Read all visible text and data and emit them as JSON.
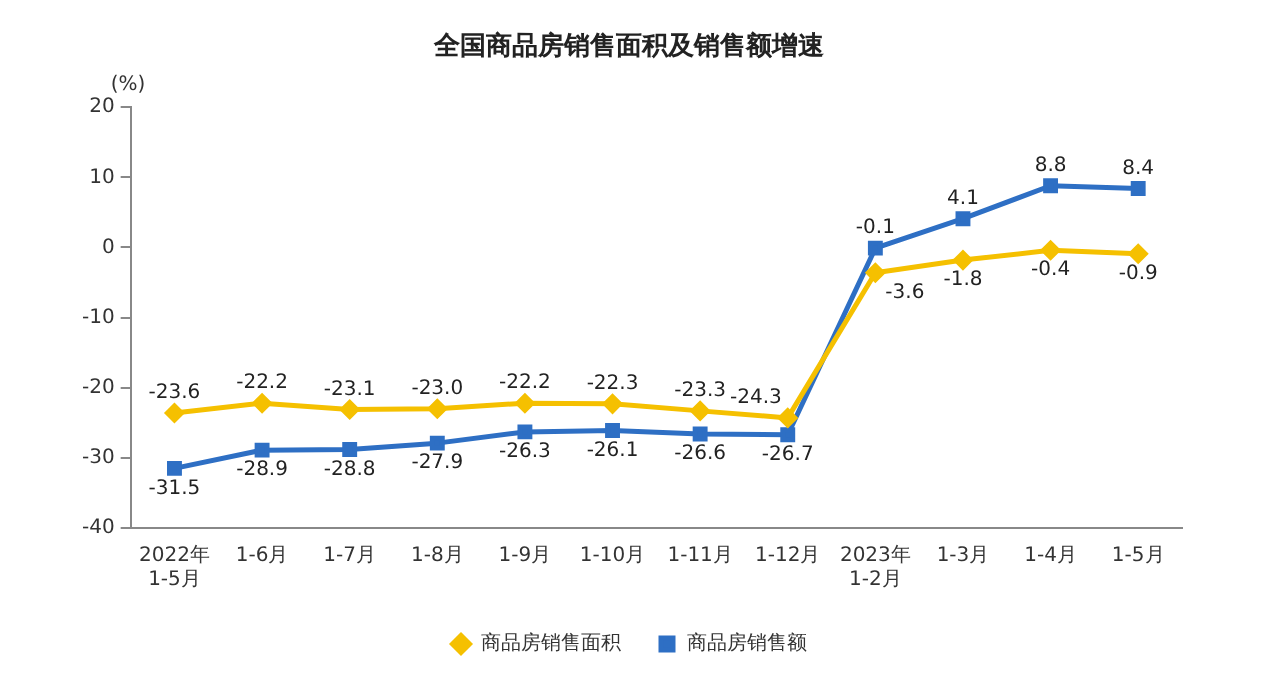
{
  "chart_data": {
    "type": "line",
    "title": "全国商品房销售面积及销售额增速",
    "ylabel": "(%)",
    "categories": [
      "2022年\n1-5月",
      "1-6月",
      "1-7月",
      "1-8月",
      "1-9月",
      "1-10月",
      "1-11月",
      "1-12月",
      "2023年\n1-2月",
      "1-3月",
      "1-4月",
      "1-5月"
    ],
    "series": [
      {
        "name": "商品房销售面积",
        "color": "#f5c000",
        "marker": "diamond",
        "values": [
          -23.6,
          -22.2,
          -23.1,
          -23.0,
          -22.2,
          -22.3,
          -23.3,
          -24.3,
          -3.6,
          -1.8,
          -0.4,
          -0.9
        ],
        "value_labels": [
          "-23.6",
          "-22.2",
          "-23.1",
          "-23.0",
          "-22.2",
          "-22.3",
          "-23.3",
          "-24.3",
          "-3.6",
          "-1.8",
          "-0.4",
          "-0.9"
        ]
      },
      {
        "name": "商品房销售额",
        "color": "#2e6fc4",
        "marker": "square",
        "values": [
          -31.5,
          -28.9,
          -28.8,
          -27.9,
          -26.3,
          -26.1,
          -26.6,
          -26.7,
          -0.1,
          4.1,
          8.8,
          8.4
        ],
        "value_labels": [
          "-31.5",
          "-28.9",
          "-28.8",
          "-27.9",
          "-26.3",
          "-26.1",
          "-26.6",
          "-26.7",
          "-0.1",
          "4.1",
          "8.8",
          "8.4"
        ]
      }
    ],
    "ylim": [
      -40,
      20
    ],
    "yticks": [
      -40,
      -30,
      -20,
      -10,
      0,
      10,
      20
    ],
    "grid": false,
    "legend": "bottom",
    "line_style": "solid"
  }
}
